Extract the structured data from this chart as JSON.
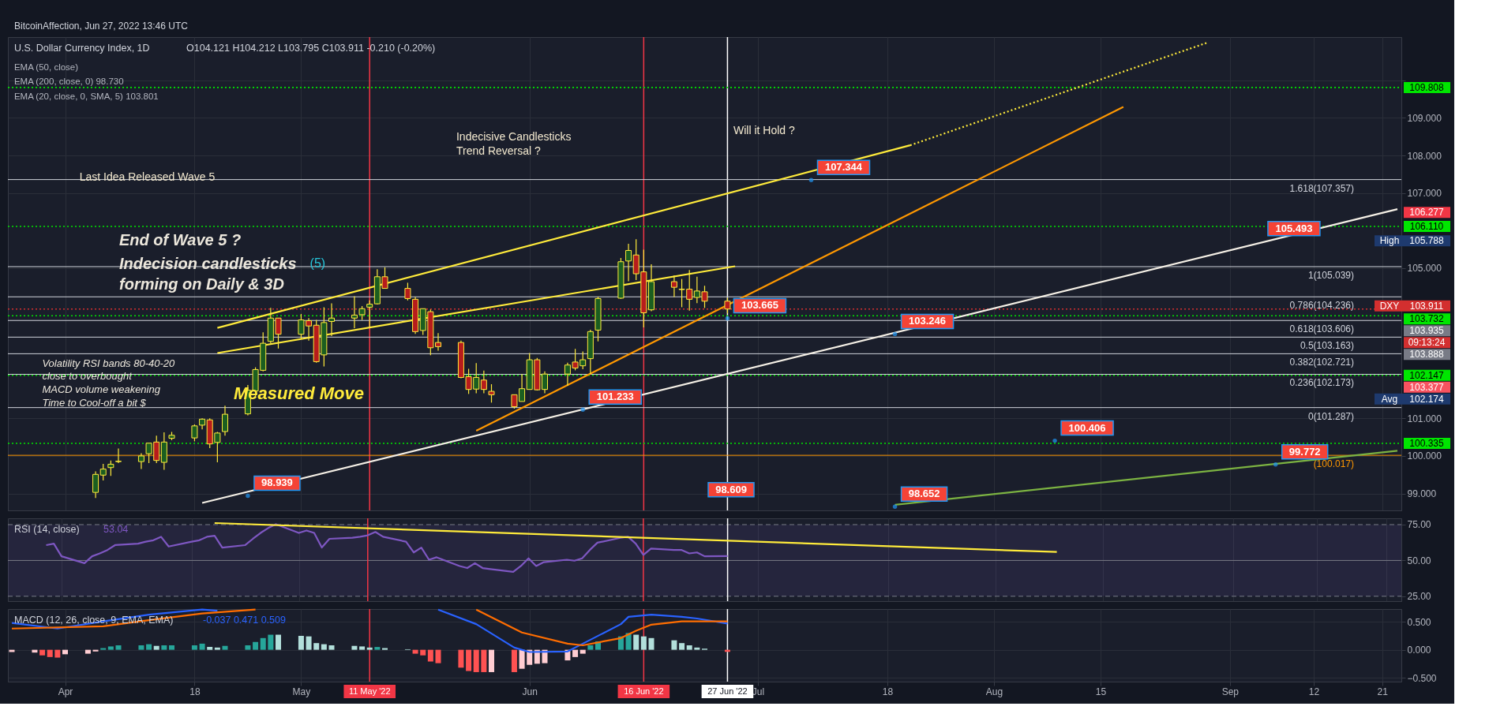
{
  "chart_data": [
    {
      "type": "candlestick",
      "title": "U.S. Dollar Currency Index, 1D",
      "subtitle": "O104.121 H104.212 L103.795 C103.911 -0.210 (-0.20%)",
      "x": [
        "2022-04-05",
        "2022-04-06",
        "2022-04-07",
        "2022-04-08",
        "2022-04-11",
        "2022-04-12",
        "2022-04-13",
        "2022-04-14",
        "2022-04-15",
        "2022-04-18",
        "2022-04-19",
        "2022-04-20",
        "2022-04-21",
        "2022-04-22",
        "2022-04-25",
        "2022-04-26",
        "2022-04-27",
        "2022-04-28",
        "2022-04-29",
        "2022-05-02",
        "2022-05-03",
        "2022-05-04",
        "2022-05-05",
        "2022-05-06",
        "2022-05-09",
        "2022-05-10",
        "2022-05-11",
        "2022-05-12",
        "2022-05-13",
        "2022-05-16",
        "2022-05-17",
        "2022-05-18",
        "2022-05-19",
        "2022-05-20",
        "2022-05-23",
        "2022-05-24",
        "2022-05-25",
        "2022-05-26",
        "2022-05-27",
        "2022-05-30",
        "2022-05-31",
        "2022-06-01",
        "2022-06-02",
        "2022-06-03",
        "2022-06-06",
        "2022-06-07",
        "2022-06-08",
        "2022-06-09",
        "2022-06-10",
        "2022-06-13",
        "2022-06-14",
        "2022-06-15",
        "2022-06-16",
        "2022-06-17",
        "2022-06-20",
        "2022-06-21",
        "2022-06-22",
        "2022-06-23",
        "2022-06-24",
        "2022-06-27"
      ],
      "ohlc": [
        [
          99.03,
          99.59,
          98.88,
          99.51
        ],
        [
          99.49,
          99.79,
          99.35,
          99.65
        ],
        [
          99.69,
          99.88,
          99.47,
          99.78
        ],
        [
          99.85,
          100.2,
          99.81,
          99.86
        ],
        [
          99.85,
          100.07,
          99.65,
          100.0
        ],
        [
          100.06,
          100.34,
          99.81,
          100.34
        ],
        [
          100.37,
          100.54,
          99.81,
          99.88
        ],
        [
          99.83,
          100.63,
          99.63,
          100.37
        ],
        [
          100.47,
          100.64,
          100.42,
          100.55
        ],
        [
          100.48,
          100.84,
          100.39,
          100.8
        ],
        [
          100.82,
          101.0,
          100.71,
          100.98
        ],
        [
          100.96,
          101.0,
          100.21,
          100.32
        ],
        [
          100.36,
          100.64,
          99.83,
          100.61
        ],
        [
          100.65,
          101.34,
          100.54,
          101.11
        ],
        [
          101.12,
          101.89,
          101.08,
          101.75
        ],
        [
          101.73,
          102.36,
          101.56,
          102.3
        ],
        [
          102.28,
          103.29,
          102.25,
          103.0
        ],
        [
          103.05,
          103.94,
          103.0,
          103.67
        ],
        [
          103.67,
          103.67,
          102.86,
          103.24
        ],
        [
          103.24,
          103.78,
          103.13,
          103.62
        ],
        [
          103.6,
          103.67,
          103.07,
          103.46
        ],
        [
          103.48,
          103.62,
          102.48,
          102.51
        ],
        [
          102.69,
          103.96,
          102.38,
          103.55
        ],
        [
          103.58,
          104.06,
          103.19,
          103.67
        ],
        [
          103.67,
          104.25,
          103.4,
          103.75
        ],
        [
          103.76,
          103.99,
          103.62,
          103.92
        ],
        [
          103.96,
          104.14,
          103.4,
          104.04
        ],
        [
          104.05,
          104.97,
          104.03,
          104.77
        ],
        [
          104.77,
          105.02,
          104.46,
          104.46
        ],
        [
          104.46,
          104.61,
          104.14,
          104.19
        ],
        [
          104.17,
          104.23,
          103.25,
          103.31
        ],
        [
          103.34,
          103.92,
          103.22,
          103.92
        ],
        [
          103.84,
          103.9,
          102.68,
          102.88
        ],
        [
          103.02,
          103.27,
          102.8,
          102.91
        ],
        [
          103.02,
          103.07,
          102.07,
          102.09
        ],
        [
          102.11,
          102.32,
          101.65,
          101.77
        ],
        [
          101.78,
          102.47,
          101.67,
          102.09
        ],
        [
          102.02,
          102.27,
          101.67,
          101.77
        ],
        [
          101.72,
          101.91,
          101.42,
          101.63
        ],
        [
          101.63,
          101.63,
          101.26,
          101.31
        ],
        [
          101.45,
          102.18,
          101.45,
          101.79
        ],
        [
          101.77,
          102.74,
          101.77,
          102.56
        ],
        [
          102.56,
          102.61,
          101.74,
          101.76
        ],
        [
          101.77,
          102.25,
          101.67,
          102.18
        ],
        [
          102.18,
          102.48,
          101.87,
          102.42
        ],
        [
          102.5,
          102.85,
          102.28,
          102.34
        ],
        [
          102.4,
          102.78,
          102.31,
          102.56
        ],
        [
          102.59,
          103.36,
          102.17,
          103.31
        ],
        [
          103.35,
          104.24,
          103.05,
          104.19
        ],
        [
          104.2,
          105.27,
          104.18,
          105.17
        ],
        [
          105.19,
          105.65,
          104.65,
          105.47
        ],
        [
          105.35,
          105.77,
          104.68,
          104.85
        ],
        [
          104.9,
          105.49,
          103.42,
          103.81
        ],
        [
          103.89,
          105.1,
          103.85,
          104.64
        ],
        [
          104.64,
          104.81,
          104.23,
          104.49
        ],
        [
          104.43,
          104.71,
          103.96,
          104.44
        ],
        [
          104.44,
          104.95,
          103.87,
          104.17
        ],
        [
          104.22,
          104.77,
          104.07,
          104.39
        ],
        [
          104.37,
          104.53,
          103.94,
          104.12
        ],
        [
          104.121,
          104.212,
          103.795,
          103.911
        ]
      ],
      "colors": [
        "#1b5e20",
        "#1b5e20",
        "#1b5e20",
        "#1b5e20",
        "#1b5e20",
        "#1b5e20",
        "#b71c1c",
        "#1b5e20",
        "#1b5e20",
        "#1b5e20",
        "#1b5e20",
        "#b71c1c",
        "#1b5e20",
        "#1b5e20",
        "#1b5e20",
        "#1b5e20",
        "#1b5e20",
        "#1b5e20",
        "#b71c1c",
        "#1b5e20",
        "#b71c1c",
        "#b71c1c",
        "#1b5e20",
        "#1b5e20",
        "#1b5e20",
        "#1b5e20",
        "#1b5e20",
        "#1b5e20",
        "#b71c1c",
        "#b71c1c",
        "#b71c1c",
        "#1b5e20",
        "#b71c1c",
        "#b71c1c",
        "#b71c1c",
        "#b71c1c",
        "#1b5e20",
        "#b71c1c",
        "#b71c1c",
        "#b71c1c",
        "#1b5e20",
        "#1b5e20",
        "#b71c1c",
        "#1b5e20",
        "#1b5e20",
        "#b71c1c",
        "#1b5e20",
        "#1b5e20",
        "#1b5e20",
        "#1b5e20",
        "#1b5e20",
        "#b71c1c",
        "#b71c1c",
        "#1b5e20",
        "#b71c1c",
        "#1b5e20",
        "#b71c1c",
        "#1b5e20",
        "#b71c1c",
        "#b71c1c"
      ],
      "series": [
        {
          "type": "line",
          "color": "#ff9800",
          "x": [
            "2022-05-25",
            "2022-08-18"
          ],
          "values": [
            100.67,
            109.29
          ]
        },
        {
          "type": "line",
          "color": "#f5f0e6",
          "x": [
            "2022-04-19",
            "2022-09-23"
          ],
          "values": [
            98.75,
            106.57
          ]
        },
        {
          "type": "line",
          "color": "#ffeb3b",
          "x": [
            "2022-04-21",
            "2022-07-21"
          ],
          "values": [
            103.41,
            108.27
          ]
        },
        {
          "type": "line",
          "color": "#ffeb3b",
          "line_style": "dotted",
          "x": [
            "2022-07-21",
            "2022-08-29"
          ],
          "values": [
            108.27,
            111.0
          ]
        },
        {
          "type": "line",
          "color": "#ffeb3b",
          "x": [
            "2022-04-21",
            "2022-06-28"
          ],
          "values": [
            102.74,
            105.05
          ]
        },
        {
          "type": "line",
          "color": "#7cb342",
          "x": [
            "2022-07-19",
            "2022-09-23"
          ],
          "values": [
            98.7,
            100.14
          ]
        }
      ],
      "xlim": [
        "2022-03-25",
        "2022-09-23"
      ],
      "xticks": [
        {
          "value": "2022-04-01",
          "label": null
        },
        {
          "value": "2022-04-18",
          "label": null
        },
        {
          "value": "2022-05-02",
          "label": null
        },
        {
          "value": "2022-06-01",
          "label": null
        },
        {
          "value": "2022-07-01",
          "label": null
        },
        {
          "value": "2022-07-18",
          "label": null
        },
        {
          "value": "2022-08-01",
          "label": null
        },
        {
          "value": "2022-08-15",
          "label": null
        },
        {
          "value": "2022-09-01",
          "label": null
        },
        {
          "value": "2022-09-12",
          "label": null
        },
        {
          "value": "2022-09-21",
          "label": null
        }
      ],
      "ylim": [
        98.55,
        111.15
      ],
      "yticks": [
        {
          "value": 99,
          "label": "99.000"
        },
        {
          "value": 100,
          "label": "100.000"
        },
        {
          "value": 101,
          "label": "101.000"
        },
        {
          "value": 105,
          "label": "105.000"
        },
        {
          "value": 107,
          "label": "107.000"
        },
        {
          "value": 108,
          "label": "108.000"
        },
        {
          "value": 109,
          "label": "109.000"
        },
        {
          "value": 110,
          "label": null
        }
      ],
      "grid": true,
      "tick_labels": "y",
      "ref_lines": [
        {
          "axis": "x",
          "value": "2022-05-11",
          "color": "#f23645"
        },
        {
          "axis": "x",
          "value": "2022-06-16",
          "color": "#f23645"
        },
        {
          "axis": "x",
          "value": "2022-06-27",
          "color": "#ffffff"
        },
        {
          "axis": "y",
          "value": 107.357,
          "label": "1.618(107.357)",
          "color": "#d1d4dc",
          "line_style": "solid"
        },
        {
          "axis": "y",
          "value": 105.039,
          "label": "1(105.039)",
          "color": "#d1d4dc",
          "line_style": "solid"
        },
        {
          "axis": "y",
          "value": 104.236,
          "label": "0.786(104.236)",
          "color": "#d1d4dc",
          "line_style": "solid"
        },
        {
          "axis": "y",
          "value": 103.606,
          "label": "0.618(103.606)",
          "color": "#d1d4dc",
          "line_style": "solid"
        },
        {
          "axis": "y",
          "value": 103.163,
          "label": "0.5(103.163)",
          "color": "#d1d4dc",
          "line_style": "solid"
        },
        {
          "axis": "y",
          "value": 102.721,
          "label": "0.382(102.721)",
          "color": "#d1d4dc",
          "line_style": "solid"
        },
        {
          "axis": "y",
          "value": 102.173,
          "label": "0.236(102.173)",
          "color": "#d1d4dc",
          "line_style": "solid"
        },
        {
          "axis": "y",
          "value": 101.287,
          "label": "0(101.287)",
          "color": "#d1d4dc",
          "line_style": "solid"
        },
        {
          "axis": "y",
          "value": 100.017,
          "label": "(100.017)",
          "color": "#ff9800",
          "line_style": "solid"
        },
        {
          "axis": "y",
          "value": 109.808,
          "label": "109.808",
          "color": "#00e600",
          "line_style": "dotted"
        },
        {
          "axis": "y",
          "value": 106.11,
          "label": "106.110",
          "color": "#00e600",
          "line_style": "dotted"
        },
        {
          "axis": "y",
          "value": 103.911,
          "label": "103.911",
          "color": "#d32f2f",
          "line_style": "dotted"
        },
        {
          "axis": "y",
          "value": 103.732,
          "label": "103.732",
          "color": "#00e600",
          "line_style": "dotted"
        },
        {
          "axis": "y",
          "value": 102.147,
          "label": "102.147",
          "color": "#00e600",
          "line_style": "dotted"
        },
        {
          "axis": "y",
          "value": 100.335,
          "label": "100.335",
          "color": "#00e600",
          "line_style": "dotted"
        }
      ],
      "annotations": [
        "BitcoinAffection, Jun 27, 2022 13:46 UTC",
        "EMA (50, close)",
        "EMA (200, close, 0) 98.730",
        "EMA (20, close, 0, SMA, 5) 103.801",
        "Last Idea Released Wave 5",
        "Indecisive Candlesticks\nTrend Reversal ?",
        "Will it Hold ?",
        "End of Wave 5 ?",
        "Indecision candlesticks\n forming on Daily & 3D",
        "(5)",
        "Volatility RSI bands 80-40-20\n close to overbought\nMACD volume weakening\nTime to Cool-off a bit $",
        "Measured Move",
        "High",
        "Avg",
        "DXY",
        "09:13:24",
        "106.277",
        "105.788",
        "103.935",
        "103.888",
        "103.377",
        "102.174",
        "105.493",
        "98.609",
        {
          "text": "107.344",
          "x": "2022-07-08",
          "y": 107.344
        },
        {
          "text": "103.665",
          "x": "2022-06-27",
          "y": 103.665
        },
        {
          "text": "103.246",
          "x": "2022-07-19",
          "y": 103.246
        },
        {
          "text": "101.233",
          "x": "2022-06-08",
          "y": 101.233
        },
        {
          "text": "100.406",
          "x": "2022-08-09",
          "y": 100.406
        },
        {
          "text": "99.772",
          "x": "2022-09-07",
          "y": 99.772
        },
        {
          "text": "98.939",
          "x": "2022-04-25",
          "y": 98.939
        },
        {
          "text": "98.652",
          "x": "2022-07-19",
          "y": 98.652
        }
      ]
    },
    {
      "type": "line",
      "title": "RSI (14, close)",
      "subtitle": "53.04",
      "series": [
        {
          "color": "#7e57c2",
          "x": [
            "2022-03-30",
            "2022-03-31",
            "2022-04-01",
            "2022-04-04",
            "2022-04-05",
            "2022-04-06",
            "2022-04-07",
            "2022-04-08",
            "2022-04-11",
            "2022-04-12",
            "2022-04-13",
            "2022-04-14",
            "2022-04-15",
            "2022-04-18",
            "2022-04-19",
            "2022-04-20",
            "2022-04-21",
            "2022-04-22",
            "2022-04-25",
            "2022-04-26",
            "2022-04-27",
            "2022-04-28",
            "2022-04-29",
            "2022-05-02",
            "2022-05-03",
            "2022-05-04",
            "2022-05-05",
            "2022-05-06",
            "2022-05-09",
            "2022-05-10",
            "2022-05-11",
            "2022-05-12",
            "2022-05-13",
            "2022-05-16",
            "2022-05-17",
            "2022-05-18",
            "2022-05-19",
            "2022-05-20",
            "2022-05-23",
            "2022-05-24",
            "2022-05-25",
            "2022-05-26",
            "2022-05-27",
            "2022-05-30",
            "2022-05-31",
            "2022-06-01",
            "2022-06-02",
            "2022-06-03",
            "2022-06-06",
            "2022-06-07",
            "2022-06-08",
            "2022-06-09",
            "2022-06-10",
            "2022-06-13",
            "2022-06-14",
            "2022-06-15",
            "2022-06-16",
            "2022-06-17",
            "2022-06-20",
            "2022-06-21",
            "2022-06-22",
            "2022-06-23",
            "2022-06-24",
            "2022-06-27"
          ],
          "values": [
            60.7,
            61.7,
            52.9,
            48.1,
            52.9,
            54.9,
            57.3,
            60.7,
            61.7,
            63.1,
            64.1,
            66.5,
            59.7,
            63.1,
            64.1,
            66.5,
            67.2,
            59.0,
            60.7,
            65.1,
            69.2,
            72.6,
            75.3,
            69.2,
            70.9,
            69.2,
            59.0,
            65.1,
            65.8,
            66.5,
            67.5,
            69.9,
            66.5,
            63.1,
            55.6,
            59.0,
            50.5,
            52.2,
            46.1,
            44.7,
            48.1,
            44.7,
            44.0,
            42.0,
            46.1,
            51.5,
            46.1,
            48.8,
            50.5,
            49.8,
            51.5,
            57.3,
            62.4,
            65.8,
            66.5,
            61.7,
            53.9,
            58.3,
            57.3,
            57.3,
            54.9,
            55.6,
            52.9,
            53.04
          ]
        },
        {
          "color": "#ffeb3b",
          "x": [
            "2022-04-21",
            "2022-08-09"
          ],
          "values": [
            76.1,
            55.9
          ]
        }
      ],
      "xlim": [
        "2022-03-25",
        "2022-09-23"
      ],
      "xticks": [
        {
          "value": "2022-04-01",
          "label": null
        },
        {
          "value": "2022-04-18",
          "label": null
        },
        {
          "value": "2022-05-02",
          "label": null
        },
        {
          "value": "2022-06-01",
          "label": null
        },
        {
          "value": "2022-07-01",
          "label": null
        },
        {
          "value": "2022-07-18",
          "label": null
        },
        {
          "value": "2022-08-01",
          "label": null
        },
        {
          "value": "2022-08-15",
          "label": null
        },
        {
          "value": "2022-09-01",
          "label": null
        },
        {
          "value": "2022-09-12",
          "label": null
        },
        {
          "value": "2022-09-21",
          "label": null
        }
      ],
      "ylim": [
        21.6,
        79.4
      ],
      "yticks": [
        {
          "value": 25,
          "label": "25.00"
        },
        {
          "value": 50,
          "label": "50.00"
        },
        {
          "value": 75,
          "label": "75.00"
        }
      ],
      "grid": "x",
      "tick_labels": "y",
      "bands": [
        {
          "axis": "y",
          "from": 25,
          "to": 75,
          "color": "#7e57c2"
        }
      ],
      "ref_lines": [
        {
          "axis": "y",
          "value": 75,
          "color": "#787b86",
          "line_style": "dashed"
        },
        {
          "axis": "y",
          "value": 50,
          "color": "#787b86",
          "line_style": "solid"
        },
        {
          "axis": "y",
          "value": 25,
          "color": "#787b86",
          "line_style": "dashed"
        },
        {
          "axis": "x",
          "value": "2022-05-11",
          "color": "#f23645"
        },
        {
          "axis": "x",
          "value": "2022-06-16",
          "color": "#f23645"
        },
        {
          "axis": "x",
          "value": "2022-06-27",
          "color": "#ffffff"
        }
      ]
    },
    {
      "type": "bar",
      "title": "MACD (12, 26, close, 9, EMA, EMA)",
      "subtitle": "-0.037 0.471 0.509",
      "x": [
        "2022-03-25",
        "2022-03-28",
        "2022-03-29",
        "2022-03-30",
        "2022-03-31",
        "2022-04-01",
        "2022-04-04",
        "2022-04-05",
        "2022-04-06",
        "2022-04-07",
        "2022-04-08",
        "2022-04-11",
        "2022-04-12",
        "2022-04-13",
        "2022-04-14",
        "2022-04-15",
        "2022-04-18",
        "2022-04-19",
        "2022-04-20",
        "2022-04-21",
        "2022-04-22",
        "2022-04-25",
        "2022-04-26",
        "2022-04-27",
        "2022-04-28",
        "2022-04-29",
        "2022-05-02",
        "2022-05-03",
        "2022-05-04",
        "2022-05-05",
        "2022-05-06",
        "2022-05-09",
        "2022-05-10",
        "2022-05-11",
        "2022-05-12",
        "2022-05-13",
        "2022-05-16",
        "2022-05-17",
        "2022-05-18",
        "2022-05-19",
        "2022-05-20",
        "2022-05-23",
        "2022-05-24",
        "2022-05-25",
        "2022-05-26",
        "2022-05-27",
        "2022-05-30",
        "2022-05-31",
        "2022-06-01",
        "2022-06-02",
        "2022-06-03",
        "2022-06-06",
        "2022-06-07",
        "2022-06-08",
        "2022-06-09",
        "2022-06-10",
        "2022-06-13",
        "2022-06-14",
        "2022-06-15",
        "2022-06-16",
        "2022-06-17",
        "2022-06-20",
        "2022-06-21",
        "2022-06-22",
        "2022-06-23",
        "2022-06-24",
        "2022-06-27"
      ],
      "series": [
        {
          "type": "bar",
          "values": [
            -0.04,
            -0.05,
            -0.1,
            -0.13,
            -0.14,
            -0.08,
            -0.07,
            -0.03,
            0.03,
            0.06,
            0.08,
            0.08,
            0.1,
            0.07,
            0.08,
            0.08,
            0.08,
            0.11,
            0.05,
            0.04,
            0.07,
            0.08,
            0.14,
            0.21,
            0.27,
            0.27,
            0.25,
            0.24,
            0.12,
            0.1,
            0.08,
            0.07,
            0.06,
            0.04,
            0.05,
            0.03,
            0.01,
            -0.07,
            -0.1,
            -0.21,
            -0.24,
            -0.32,
            -0.38,
            -0.4,
            -0.4,
            -0.4,
            -0.4,
            -0.34,
            -0.27,
            -0.25,
            -0.24,
            -0.19,
            -0.13,
            -0.07,
            0.08,
            0.15,
            0.24,
            0.3,
            0.27,
            0.24,
            0.21,
            0.17,
            0.12,
            0.08,
            0.04,
            0.02,
            -0.037
          ],
          "colors": [
            "#ffcdd2",
            "#ffcdd2",
            "#ff5252",
            "#ff5252",
            "#ff5252",
            "#ffcdd2",
            "#ffcdd2",
            "#ffcdd2",
            "#26a69a",
            "#26a69a",
            "#26a69a",
            "#26a69a",
            "#26a69a",
            "#b2dfdb",
            "#26a69a",
            "#26a69a",
            "#26a69a",
            "#26a69a",
            "#b2dfdb",
            "#b2dfdb",
            "#26a69a",
            "#26a69a",
            "#26a69a",
            "#26a69a",
            "#26a69a",
            "#b2dfdb",
            "#b2dfdb",
            "#b2dfdb",
            "#b2dfdb",
            "#b2dfdb",
            "#b2dfdb",
            "#b2dfdb",
            "#b2dfdb",
            "#b2dfdb",
            "#26a69a",
            "#b2dfdb",
            "#b2dfdb",
            "#ff5252",
            "#ff5252",
            "#ff5252",
            "#ff5252",
            "#ff5252",
            "#ff5252",
            "#ff5252",
            "#ff5252",
            "#ffcdd2",
            "#ff5252",
            "#ffcdd2",
            "#ffcdd2",
            "#ffcdd2",
            "#ffcdd2",
            "#ffcdd2",
            "#ffcdd2",
            "#ffcdd2",
            "#26a69a",
            "#26a69a",
            "#26a69a",
            "#26a69a",
            "#b2dfdb",
            "#b2dfdb",
            "#b2dfdb",
            "#b2dfdb",
            "#b2dfdb",
            "#b2dfdb",
            "#b2dfdb",
            "#b2dfdb",
            "#ff5252"
          ]
        },
        {
          "type": "line",
          "color": "#2962ff",
          "x": [
            "2022-03-25",
            "2022-03-31",
            "2022-04-06",
            "2022-04-12",
            "2022-04-19",
            "2022-04-21",
            "2022-04-26",
            "2022-05-20",
            "2022-05-25",
            "2022-05-30",
            "2022-06-01",
            "2022-06-06",
            "2022-06-08",
            "2022-06-13",
            "2022-06-14",
            "2022-06-17",
            "2022-06-21",
            "2022-06-23",
            "2022-06-27"
          ],
          "values": [
            0.48,
            0.38,
            0.51,
            0.63,
            0.72,
            0.7,
            null,
            0.72,
            0.46,
            0.04,
            -0.04,
            -0.03,
            0.11,
            0.46,
            0.59,
            0.63,
            0.59,
            0.56,
            0.471
          ]
        },
        {
          "type": "line",
          "color": "#ff6d00",
          "x": [
            "2022-03-25",
            "2022-04-06",
            "2022-04-12",
            "2022-04-19",
            "2022-04-26",
            "2022-04-27",
            "2022-05-25",
            "2022-05-31",
            "2022-06-06",
            "2022-06-08",
            "2022-06-13",
            "2022-06-15",
            "2022-06-17",
            "2022-06-21",
            "2022-06-27"
          ],
          "values": [
            0.38,
            0.42,
            0.53,
            0.65,
            0.72,
            null,
            0.72,
            0.31,
            0.11,
            0.08,
            0.21,
            0.34,
            0.45,
            0.51,
            0.509
          ]
        }
      ],
      "xlim": [
        "2022-03-25",
        "2022-09-23"
      ],
      "xticks": [
        {
          "value": "2022-04-01",
          "label": "Apr"
        },
        {
          "value": "2022-04-18",
          "label": "18"
        },
        {
          "value": "2022-05-02",
          "label": "May"
        },
        {
          "value": "2022-06-01",
          "label": "Jun"
        },
        {
          "value": "2022-07-01",
          "label": "Jul"
        },
        {
          "value": "2022-07-18",
          "label": "18"
        },
        {
          "value": "2022-08-01",
          "label": "Aug"
        },
        {
          "value": "2022-08-15",
          "label": "15"
        },
        {
          "value": "2022-09-01",
          "label": "Sep"
        },
        {
          "value": "2022-09-12",
          "label": "12"
        },
        {
          "value": "2022-09-21",
          "label": "21"
        }
      ],
      "ylim": [
        -0.57,
        0.73
      ],
      "yticks": [
        {
          "value": -0.5,
          "label": "−0.500"
        },
        {
          "value": 0,
          "label": "0.000"
        },
        {
          "value": 0.5,
          "label": "0.500"
        }
      ],
      "grid": true,
      "ref_lines": [
        {
          "axis": "x",
          "value": "2022-05-11",
          "label": "11 May '22",
          "color": "#f23645"
        },
        {
          "axis": "x",
          "value": "2022-06-16",
          "label": "16 Jun '22",
          "color": "#f23645"
        },
        {
          "axis": "x",
          "value": "2022-06-27",
          "label": "27 Jun '22",
          "color": "#ffffff"
        }
      ]
    }
  ]
}
